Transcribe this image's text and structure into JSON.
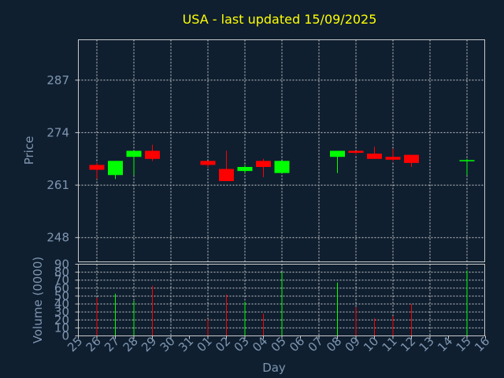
{
  "chart_data": {
    "title": "USA - last updated 15/09/2025",
    "price_panel": {
      "type": "candlestick",
      "ylabel": "Price",
      "ylim": [
        242,
        297
      ],
      "yticks": [
        248,
        261,
        274,
        287
      ],
      "grid": true
    },
    "volume_panel": {
      "type": "bar",
      "ylabel": "Volume (0000)",
      "ylim": [
        0,
        90
      ],
      "yticks": [
        0,
        10,
        20,
        30,
        40,
        50,
        60,
        70,
        80,
        90
      ],
      "grid": true
    },
    "xlabel": "Day",
    "x_ticks": [
      "25",
      "26",
      "27",
      "28",
      "29",
      "30",
      "31",
      "01",
      "02",
      "03",
      "04",
      "05",
      "06",
      "07",
      "08",
      "09",
      "10",
      "11",
      "12",
      "13",
      "14",
      "15",
      "16"
    ],
    "colors": {
      "up": "#00ff00",
      "down": "#ff0000",
      "title": "#ffff00",
      "axis_text": "#7f96b0",
      "background": "#0f1f30",
      "frame": "#c8c8c8"
    },
    "candles": [
      {
        "day": "26",
        "open": 266.0,
        "high": 266.5,
        "low": 262.5,
        "close": 264.8,
        "volume": 48
      },
      {
        "day": "27",
        "open": 263.5,
        "high": 267.0,
        "low": 262.5,
        "close": 267.0,
        "volume": 53
      },
      {
        "day": "28",
        "open": 268.0,
        "high": 269.5,
        "low": 263.5,
        "close": 269.5,
        "volume": 44
      },
      {
        "day": "29",
        "open": 269.5,
        "high": 271.0,
        "low": 267.0,
        "close": 267.5,
        "volume": 63
      },
      {
        "day": "01",
        "open": 267.0,
        "high": 267.0,
        "low": 265.5,
        "close": 266.0,
        "volume": 21
      },
      {
        "day": "02",
        "open": 265.0,
        "high": 269.5,
        "low": 262.0,
        "close": 262.0,
        "volume": 52
      },
      {
        "day": "03",
        "open": 264.5,
        "high": 266.0,
        "low": 264.0,
        "close": 265.5,
        "volume": 43
      },
      {
        "day": "04",
        "open": 267.0,
        "high": 267.5,
        "low": 263.0,
        "close": 265.5,
        "volume": 28
      },
      {
        "day": "05",
        "open": 264.0,
        "high": 267.0,
        "low": 264.0,
        "close": 267.0,
        "volume": 80
      },
      {
        "day": "08",
        "open": 268.0,
        "high": 269.5,
        "low": 264.0,
        "close": 269.5,
        "volume": 67
      },
      {
        "day": "09",
        "open": 269.5,
        "high": 269.5,
        "low": 268.5,
        "close": 269.0,
        "volume": 36
      },
      {
        "day": "10",
        "open": 268.8,
        "high": 270.5,
        "low": 267.5,
        "close": 267.5,
        "volume": 22
      },
      {
        "day": "11",
        "open": 268.0,
        "high": 270.0,
        "low": 267.0,
        "close": 267.3,
        "volume": 25
      },
      {
        "day": "12",
        "open": 268.5,
        "high": 268.5,
        "low": 265.5,
        "close": 266.5,
        "volume": 40
      },
      {
        "day": "15",
        "open": 267.0,
        "high": 267.5,
        "low": 263.5,
        "close": 267.2,
        "volume": 82
      }
    ]
  }
}
